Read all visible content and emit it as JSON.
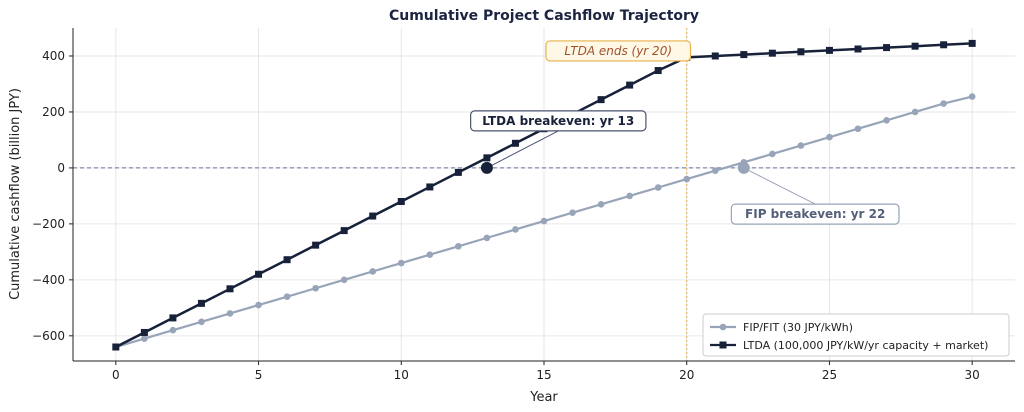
{
  "chart_data": {
    "type": "line",
    "title": "Cumulative Project Cashflow Trajectory",
    "xlabel": "Year",
    "ylabel": "Cumulative cashflow (billion JPY)",
    "xlim": [
      -1.5,
      31.5
    ],
    "ylim": [
      -690,
      500
    ],
    "xticks": [
      0,
      5,
      10,
      15,
      20,
      25,
      30
    ],
    "yticks": [
      -600,
      -400,
      -200,
      0,
      200,
      400
    ],
    "ytick_labels": [
      "−600",
      "−400",
      "−200",
      "0",
      "200",
      "400"
    ],
    "grid": true,
    "legend_position": "lower-right",
    "x": [
      0,
      1,
      2,
      3,
      4,
      5,
      6,
      7,
      8,
      9,
      10,
      11,
      12,
      13,
      14,
      15,
      16,
      17,
      18,
      19,
      20,
      21,
      22,
      23,
      24,
      25,
      26,
      27,
      28,
      29,
      30
    ],
    "series": [
      {
        "name": "FIP/FIT (30 JPY/kWh)",
        "color": "#98a4b8",
        "marker": "circle",
        "values": [
          -640,
          -610,
          -580,
          -550,
          -520,
          -490,
          -460,
          -430,
          -400,
          -370,
          -340,
          -310,
          -280,
          -250,
          -220,
          -190,
          -160,
          -130,
          -100,
          -70,
          -40,
          -10,
          20,
          50,
          80,
          110,
          140,
          170,
          200,
          230,
          255
        ]
      },
      {
        "name": "LTDA (100,000 JPY/kW/yr capacity + market)",
        "color": "#18213a",
        "marker": "square",
        "values": [
          -640,
          -588,
          -536,
          -484,
          -432,
          -380,
          -328,
          -276,
          -224,
          -172,
          -120,
          -68,
          -16,
          36,
          88,
          140,
          192,
          244,
          296,
          348,
          395,
          400,
          405,
          410,
          415,
          420,
          425,
          430,
          435,
          440,
          445
        ]
      }
    ],
    "vline": {
      "x": 20,
      "color": "#e8b04a"
    },
    "hline": {
      "y": 0,
      "color": "#6a6f9a"
    },
    "annotations": [
      {
        "text": "LTDA breakeven: yr 13",
        "point": [
          13,
          0
        ],
        "text_at": [
          15.5,
          168
        ],
        "color": "#18213a",
        "edge": "#4a5470",
        "face": "#ffffff",
        "point_color": "#18213a"
      },
      {
        "text": "FIP breakeven: yr 22",
        "point": [
          22,
          0
        ],
        "text_at": [
          24.5,
          -165
        ],
        "color": "#55607a",
        "edge": "#98a4b8",
        "face": "#ffffff",
        "point_color": "#98a4b8"
      },
      {
        "text": "LTDA ends (yr 20)",
        "text_at": [
          17.6,
          418
        ],
        "color": "#a0522d",
        "edge": "#e8b04a",
        "face": "#fff8e6"
      }
    ]
  }
}
